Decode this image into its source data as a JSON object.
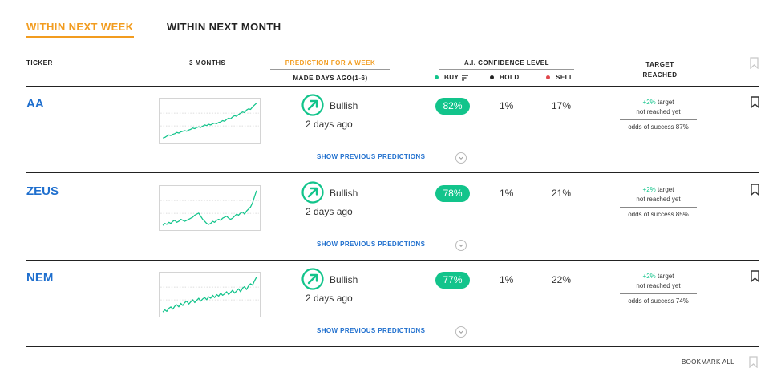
{
  "tabs": [
    {
      "label": "WITHIN NEXT WEEK",
      "active": true
    },
    {
      "label": "WITHIN NEXT MONTH",
      "active": false
    }
  ],
  "headers": {
    "ticker": "TICKER",
    "three_months": "3 MONTHS",
    "prediction": "PREDICTION FOR A WEEK",
    "made_days_ago": "MADE DAYS AGO(1-6)",
    "confidence": "A.I. CONFIDENCE LEVEL",
    "buy": "BUY",
    "hold": "HOLD",
    "sell": "SELL",
    "target_line1": "TARGET",
    "target_line2": "REACHED"
  },
  "colors": {
    "accent": "#f29c1f",
    "link": "#1f6fce",
    "buy": "#12c48b",
    "hold": "#222222",
    "sell": "#e0474c"
  },
  "rows": [
    {
      "ticker": "AA",
      "prediction": "Bullish",
      "days_ago": "2 days ago",
      "buy": "82%",
      "hold": "1%",
      "sell": "17%",
      "target_pct": "+2%",
      "target_word": "target",
      "target_status": "not reached yet",
      "odds": "odds of success 87%",
      "show_previous": "SHOW PREVIOUS PREDICTIONS",
      "sparkline": [
        10,
        11,
        13,
        15,
        14,
        16,
        17,
        19,
        18,
        20,
        21,
        22,
        21,
        23,
        24,
        26,
        25,
        27,
        28,
        27,
        29,
        31,
        30,
        32,
        31,
        33,
        34,
        33,
        35,
        36,
        38,
        37,
        40,
        42,
        41,
        44,
        46,
        45,
        48,
        50,
        52,
        51,
        55,
        57,
        56,
        60,
        63,
        66
      ]
    },
    {
      "ticker": "ZEUS",
      "prediction": "Bullish",
      "days_ago": "2 days ago",
      "buy": "78%",
      "hold": "1%",
      "sell": "21%",
      "target_pct": "+2%",
      "target_word": "target",
      "target_status": "not reached yet",
      "odds": "odds of success 85%",
      "show_previous": "SHOW PREVIOUS PREDICTIONS",
      "sparkline": [
        22,
        24,
        23,
        25,
        24,
        26,
        27,
        25,
        26,
        28,
        27,
        26,
        27,
        28,
        29,
        30,
        32,
        33,
        34,
        31,
        28,
        26,
        24,
        23,
        24,
        26,
        25,
        27,
        28,
        27,
        29,
        30,
        31,
        29,
        28,
        29,
        31,
        33,
        32,
        34,
        35,
        33,
        36,
        38,
        40,
        44,
        50,
        56
      ]
    },
    {
      "ticker": "NEM",
      "prediction": "Bullish",
      "days_ago": "2 days ago",
      "buy": "77%",
      "hold": "1%",
      "sell": "22%",
      "target_pct": "+2%",
      "target_word": "target",
      "target_status": "not reached yet",
      "odds": "odds of success 74%",
      "show_previous": "SHOW PREVIOUS PREDICTIONS",
      "sparkline": [
        12,
        15,
        13,
        17,
        19,
        16,
        20,
        22,
        19,
        24,
        21,
        25,
        27,
        23,
        26,
        29,
        25,
        28,
        31,
        27,
        30,
        32,
        29,
        33,
        31,
        35,
        32,
        36,
        34,
        38,
        35,
        37,
        40,
        36,
        39,
        42,
        38,
        41,
        44,
        40,
        45,
        47,
        43,
        48,
        51,
        49,
        55,
        60
      ]
    }
  ],
  "footer": {
    "bookmark_all": "BOOKMARK ALL"
  },
  "icons": {
    "bookmark": "bookmark-icon",
    "prediction": "arrow-up-right-circle-icon",
    "chevron": "chevron-down-icon",
    "sort": "sort-icon"
  }
}
